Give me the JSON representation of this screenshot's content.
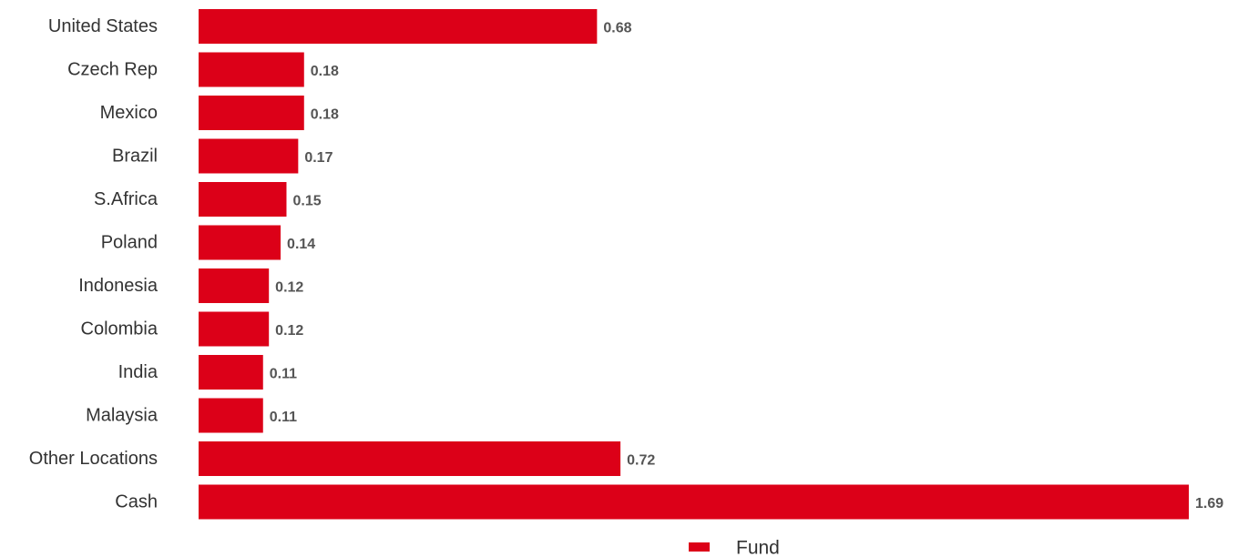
{
  "chart_data": {
    "type": "bar",
    "orientation": "horizontal",
    "categories": [
      "United States",
      "Czech Rep",
      "Mexico",
      "Brazil",
      "S.Africa",
      "Poland",
      "Indonesia",
      "Colombia",
      "India",
      "Malaysia",
      "Other Locations",
      "Cash"
    ],
    "series": [
      {
        "name": "Fund",
        "values": [
          0.68,
          0.18,
          0.18,
          0.17,
          0.15,
          0.14,
          0.12,
          0.12,
          0.11,
          0.11,
          0.72,
          1.69
        ],
        "labels": [
          "0.68",
          "0.18",
          "0.18",
          "0.17",
          "0.15",
          "0.14",
          "0.12",
          "0.12",
          "0.11",
          "0.11",
          "0.72",
          "1.69"
        ]
      }
    ],
    "title": "",
    "xlabel": "",
    "ylabel": "",
    "xlim": [
      0,
      1.69
    ],
    "grid": false,
    "legend": "bottom-center",
    "bar_color": "#dc0018"
  }
}
